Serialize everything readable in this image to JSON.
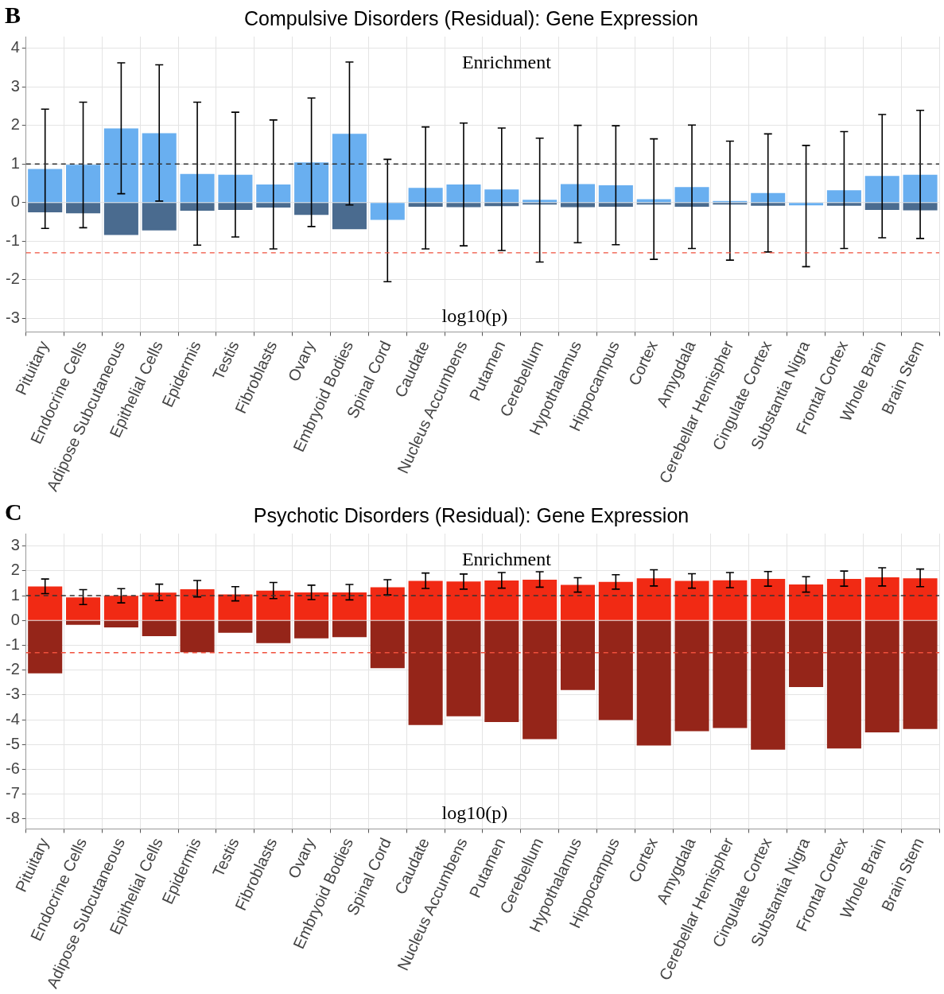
{
  "chart_data": [
    {
      "type": "bar",
      "title": "Compulsive Disorders (Residual): Gene Expression",
      "annotations": [
        "B",
        "Enrichment",
        "log10(p)"
      ],
      "categories": [
        "Pituitary",
        "Endocrine Cells",
        "Adipose Subcutaneous",
        "Epithelial Cells",
        "Epidermis",
        "Testis",
        "Fibroblasts",
        "Ovary",
        "Embryoid Bodies",
        "Spinal Cord",
        "Caudate",
        "Nucleus Accumbens",
        "Putamen",
        "Cerebellum",
        "Hypothalamus",
        "Hippocampus",
        "Cortex",
        "Amygdala",
        "Cerebellar Hemispher",
        "Cingulate Cortex",
        "Substantia Nigra",
        "Frontal Cortex",
        "Whole Brain",
        "Brain Stem"
      ],
      "stacked": true,
      "series": [
        {
          "color": "#69aff0",
          "values": [
            0.87,
            0.98,
            1.92,
            1.8,
            0.74,
            0.72,
            0.47,
            1.04,
            1.78,
            -0.45,
            0.38,
            0.47,
            0.34,
            0.07,
            0.48,
            0.45,
            0.09,
            0.4,
            0.04,
            0.25,
            -0.07,
            0.32,
            0.69,
            0.72
          ],
          "errors": [
            [
              -0.67,
              2.42
            ],
            [
              -0.65,
              2.6
            ],
            [
              0.23,
              3.62
            ],
            [
              0.04,
              3.57
            ],
            [
              -1.1,
              2.6
            ],
            [
              -0.89,
              2.34
            ],
            [
              -1.2,
              2.14
            ],
            [
              -0.62,
              2.71
            ],
            [
              -0.06,
              3.64
            ],
            [
              -2.05,
              1.12
            ],
            [
              -1.2,
              1.96
            ],
            [
              -1.12,
              2.06
            ],
            [
              -1.24,
              1.93
            ],
            [
              -1.54,
              1.67
            ],
            [
              -1.04,
              2.0
            ],
            [
              -1.09,
              1.99
            ],
            [
              -1.47,
              1.65
            ],
            [
              -1.19,
              2.01
            ],
            [
              -1.49,
              1.59
            ],
            [
              -1.28,
              1.78
            ],
            [
              -1.66,
              1.48
            ],
            [
              -1.19,
              1.84
            ],
            [
              -0.91,
              2.28
            ],
            [
              -0.93,
              2.39
            ]
          ]
        },
        {
          "color": "#4a6b8f",
          "values": [
            -0.25,
            -0.28,
            -0.84,
            -0.72,
            -0.21,
            -0.19,
            -0.13,
            -0.32,
            -0.69,
            null,
            -0.11,
            -0.12,
            -0.09,
            -0.05,
            -0.12,
            -0.11,
            -0.05,
            -0.11,
            -0.05,
            -0.08,
            null,
            -0.08,
            -0.19,
            -0.2
          ]
        }
      ],
      "ylim": [
        -3.35,
        4.3
      ],
      "yticks": [
        -3,
        -2,
        -1,
        0,
        1,
        2,
        3,
        4
      ],
      "grid": true,
      "legend": false,
      "ref_lines": [
        {
          "axis": "y",
          "value": 1,
          "color": "#333333",
          "line_style": "dashed"
        },
        {
          "axis": "y",
          "value": -1.3,
          "color": "#f0503c",
          "line_style": "dashed"
        }
      ]
    },
    {
      "type": "bar",
      "title": "Psychotic Disorders (Residual): Gene Expression",
      "annotations": [
        "C",
        "Enrichment",
        "log10(p)"
      ],
      "categories": [
        "Pituitary",
        "Endocrine Cells",
        "Adipose Subcutaneous",
        "Epithelial Cells",
        "Epidermis",
        "Testis",
        "Fibroblasts",
        "Ovary",
        "Embryoid Bodies",
        "Spinal Cord",
        "Caudate",
        "Nucleus Accumbens",
        "Putamen",
        "Cerebellum",
        "Hypothalamus",
        "Hippocampus",
        "Cortex",
        "Amygdala",
        "Cerebellar Hemispher",
        "Cingulate Cortex",
        "Substantia Nigra",
        "Frontal Cortex",
        "Whole Brain",
        "Brain Stem"
      ],
      "stacked": true,
      "series": [
        {
          "color": "#f12a14",
          "values": [
            1.37,
            0.93,
            0.99,
            1.12,
            1.26,
            1.05,
            1.2,
            1.13,
            1.13,
            1.34,
            1.59,
            1.57,
            1.61,
            1.64,
            1.43,
            1.55,
            1.7,
            1.59,
            1.62,
            1.67,
            1.45,
            1.67,
            1.74,
            1.7
          ],
          "errors": [
            [
              1.08,
              1.67
            ],
            [
              0.64,
              1.24
            ],
            [
              0.71,
              1.28
            ],
            [
              0.8,
              1.46
            ],
            [
              0.95,
              1.61
            ],
            [
              0.79,
              1.36
            ],
            [
              0.88,
              1.53
            ],
            [
              0.84,
              1.42
            ],
            [
              0.83,
              1.45
            ],
            [
              1.03,
              1.64
            ],
            [
              1.29,
              1.91
            ],
            [
              1.26,
              1.87
            ],
            [
              1.3,
              1.93
            ],
            [
              1.34,
              1.96
            ],
            [
              1.14,
              1.72
            ],
            [
              1.26,
              1.84
            ],
            [
              1.39,
              2.04
            ],
            [
              1.3,
              1.88
            ],
            [
              1.32,
              1.93
            ],
            [
              1.38,
              1.97
            ],
            [
              1.14,
              1.76
            ],
            [
              1.38,
              1.99
            ],
            [
              1.39,
              2.12
            ],
            [
              1.36,
              2.07
            ]
          ]
        },
        {
          "color": "#952519",
          "values": [
            -2.13,
            -0.18,
            -0.28,
            -0.63,
            -1.28,
            -0.5,
            -0.91,
            -0.72,
            -0.67,
            -1.92,
            -4.21,
            -3.86,
            -4.09,
            -4.78,
            -2.8,
            -4.01,
            -5.04,
            -4.46,
            -4.33,
            -5.21,
            -2.68,
            -5.16,
            -4.51,
            -4.37
          ]
        }
      ],
      "ylim": [
        -8.4,
        3.5
      ],
      "yticks": [
        -8,
        -7,
        -6,
        -5,
        -4,
        -3,
        -2,
        -1,
        0,
        1,
        2,
        3
      ],
      "grid": true,
      "legend": false,
      "ref_lines": [
        {
          "axis": "y",
          "value": 1,
          "color": "#333333",
          "line_style": "dashed"
        },
        {
          "axis": "y",
          "value": -1.3,
          "color": "#f0503c",
          "line_style": "dashed"
        }
      ]
    }
  ]
}
